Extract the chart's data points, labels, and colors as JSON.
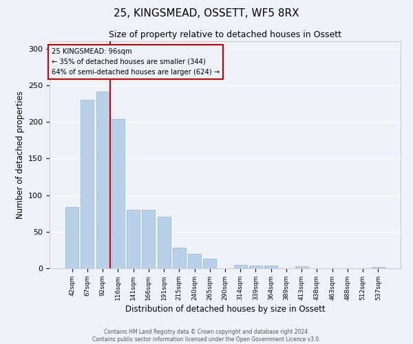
{
  "title": "25, KINGSMEAD, OSSETT, WF5 8RX",
  "subtitle": "Size of property relative to detached houses in Ossett",
  "xlabel": "Distribution of detached houses by size in Ossett",
  "ylabel": "Number of detached properties",
  "bar_color": "#b8d0e8",
  "bar_edge_color": "#8ab4d4",
  "background_color": "#eef2f7",
  "grid_color": "#ffffff",
  "categories": [
    "42sqm",
    "67sqm",
    "92sqm",
    "116sqm",
    "141sqm",
    "166sqm",
    "191sqm",
    "215sqm",
    "240sqm",
    "265sqm",
    "290sqm",
    "314sqm",
    "339sqm",
    "364sqm",
    "389sqm",
    "413sqm",
    "438sqm",
    "463sqm",
    "488sqm",
    "512sqm",
    "537sqm"
  ],
  "values": [
    84,
    230,
    241,
    204,
    80,
    80,
    70,
    28,
    20,
    13,
    0,
    5,
    4,
    4,
    0,
    3,
    0,
    0,
    0,
    0,
    2
  ],
  "ylim": [
    0,
    310
  ],
  "yticks": [
    0,
    50,
    100,
    150,
    200,
    250,
    300
  ],
  "property_label": "25 KINGSMEAD: 96sqm",
  "annotation_line1": "← 35% of detached houses are smaller (344)",
  "annotation_line2": "64% of semi-detached houses are larger (624) →",
  "vline_color": "#cc0000",
  "vline_x_index": 2.5,
  "annotation_box_color": "#cc0000",
  "footer_line1": "Contains HM Land Registry data © Crown copyright and database right 2024.",
  "footer_line2": "Contains public sector information licensed under the Open Government Licence v3.0."
}
